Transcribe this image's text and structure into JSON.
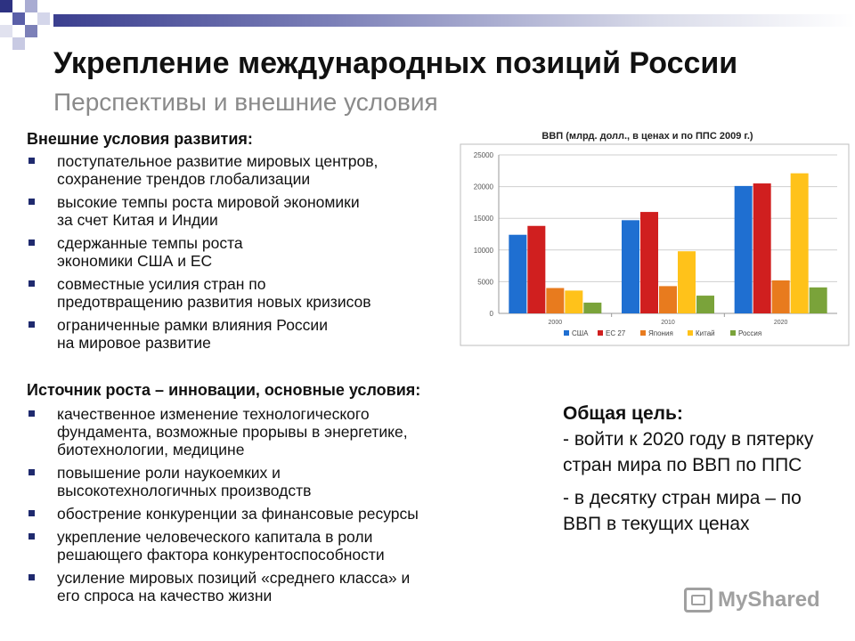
{
  "slide": {
    "title": "Укрепление международных позиций России",
    "subtitle": "Перспективы и внешние условия"
  },
  "external": {
    "heading": "Внешние условия развития:",
    "items": [
      "поступательное развитие мировых центров,\nсохранение трендов глобализации",
      "высокие темпы роста мировой экономики\nза счет Китая и Индии",
      "сдержанные темпы роста\nэкономики США и ЕС",
      "совместные усилия стран по\nпредотвращению развития новых кризисов",
      "ограниченные рамки влияния России\nна мировое развитие"
    ]
  },
  "growth": {
    "heading": "Источник роста – инновации, основные условия:",
    "items": [
      "качественное изменение технологического\nфундамента, возможные прорывы в энергетике,\nбиотехнологии, медицине",
      "повышение роли наукоемких и\nвысокотехнологичных производств",
      "обострение конкуренции за финансовые ресурсы",
      "укрепление человеческого капитала в роли\nрешающего фактора конкурентоспособности",
      "усиление мировых позиций «среднего класса» и\nего спроса на качество жизни"
    ]
  },
  "goal": {
    "title": "Общая цель:",
    "line1": "- войти к 2020 году в пятерку стран мира по ВВП по ППС",
    "line2": "- в десятку стран мира – по ВВП в текущих ценах"
  },
  "watermark": {
    "text": "MyShared",
    "icon": "myshared-logo-icon"
  },
  "chart_data": {
    "type": "bar",
    "title": "ВВП (млрд. долл., в ценах и по ППС 2009 г.)",
    "xlabel": "",
    "ylabel": "",
    "categories": [
      "2000",
      "2010",
      "2020"
    ],
    "series": [
      {
        "name": "США",
        "color": "#1f6fd1",
        "values": [
          12400,
          14700,
          20100
        ]
      },
      {
        "name": "ЕС 27",
        "color": "#d01f1f",
        "values": [
          13800,
          16000,
          20500
        ]
      },
      {
        "name": "Япония",
        "color": "#e87b1e",
        "values": [
          4000,
          4300,
          5200
        ]
      },
      {
        "name": "Китай",
        "color": "#ffc21a",
        "values": [
          3600,
          9800,
          22100
        ]
      },
      {
        "name": "Россия",
        "color": "#7aa33a",
        "values": [
          1700,
          2800,
          4100
        ]
      }
    ],
    "ylim": [
      0,
      25000
    ],
    "yticks": [
      "0",
      "5000",
      "10000",
      "15000",
      "20000",
      "25000"
    ],
    "grid": true,
    "legend": "bottom"
  }
}
